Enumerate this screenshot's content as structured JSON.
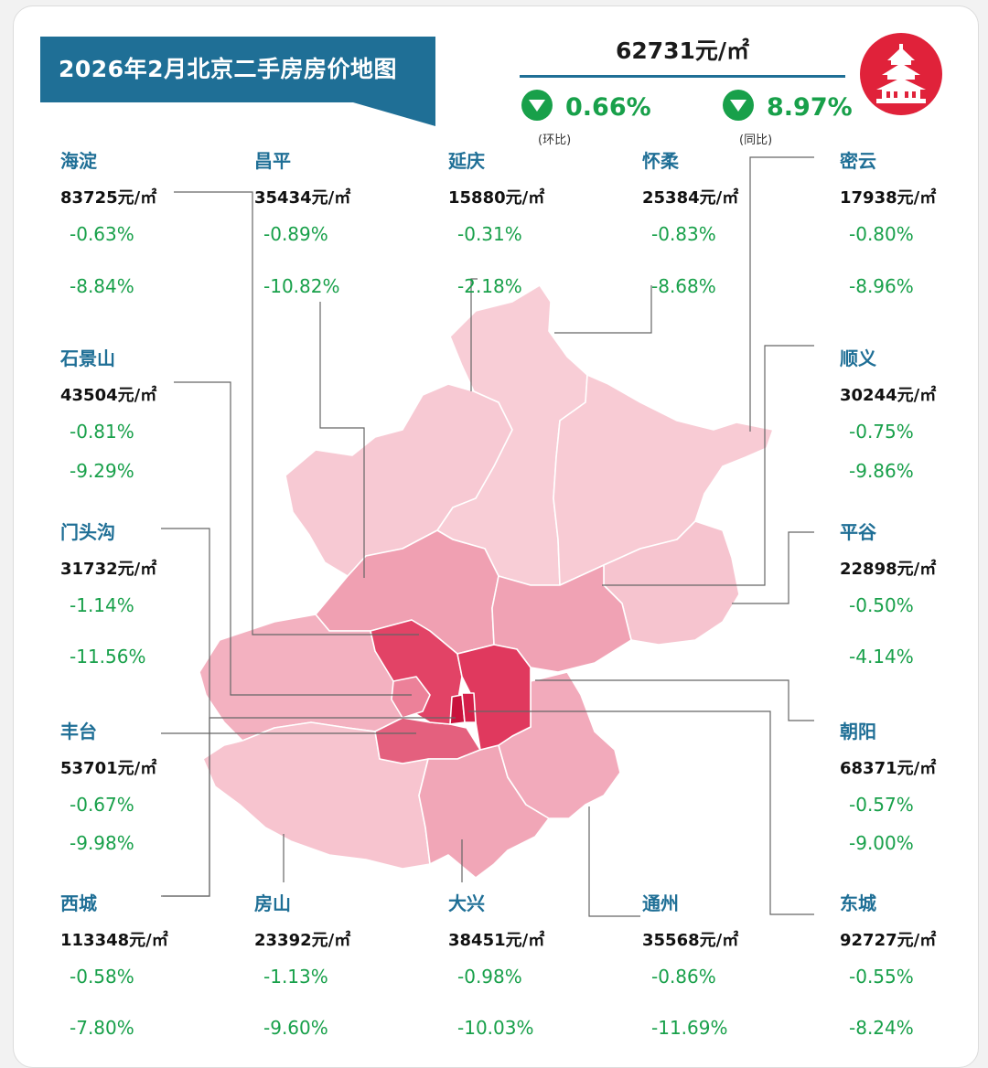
{
  "title": "2026年2月北京二手房房价地图",
  "summary": {
    "price": "62731元/㎡",
    "mom_change": "0.66%",
    "mom_label": "(环比)",
    "yoy_change": "8.97%",
    "yoy_label": "(同比)"
  },
  "colors": {
    "accent": "#1f6f96",
    "down": "#18a04a",
    "logo": "#e0223a"
  },
  "logo_icon": "temple-of-heaven-icon",
  "districts": [
    {
      "name": "海淀",
      "price": "83725元/㎡",
      "mom": "-0.63%",
      "yoy": "-8.84%"
    },
    {
      "name": "昌平",
      "price": "35434元/㎡",
      "mom": "-0.89%",
      "yoy": "-10.82%"
    },
    {
      "name": "延庆",
      "price": "15880元/㎡",
      "mom": "-0.31%",
      "yoy": "-2.18%"
    },
    {
      "name": "怀柔",
      "price": "25384元/㎡",
      "mom": "-0.83%",
      "yoy": "-8.68%"
    },
    {
      "name": "密云",
      "price": "17938元/㎡",
      "mom": "-0.80%",
      "yoy": "-8.96%"
    },
    {
      "name": "石景山",
      "price": "43504元/㎡",
      "mom": "-0.81%",
      "yoy": "-9.29%"
    },
    {
      "name": "顺义",
      "price": "30244元/㎡",
      "mom": "-0.75%",
      "yoy": "-9.86%"
    },
    {
      "name": "门头沟",
      "price": "31732元/㎡",
      "mom": "-1.14%",
      "yoy": "-11.56%"
    },
    {
      "name": "平谷",
      "price": "22898元/㎡",
      "mom": "-0.50%",
      "yoy": "-4.14%"
    },
    {
      "name": "丰台",
      "price": "53701元/㎡",
      "mom": "-0.67%",
      "yoy": "-9.98%"
    },
    {
      "name": "朝阳",
      "price": "68371元/㎡",
      "mom": "-0.57%",
      "yoy": "-9.00%"
    },
    {
      "name": "西城",
      "price": "113348元/㎡",
      "mom": "-0.58%",
      "yoy": "-7.80%"
    },
    {
      "name": "房山",
      "price": "23392元/㎡",
      "mom": "-1.13%",
      "yoy": "-9.60%"
    },
    {
      "name": "大兴",
      "price": "38451元/㎡",
      "mom": "-0.98%",
      "yoy": "-10.03%"
    },
    {
      "name": "通州",
      "price": "35568元/㎡",
      "mom": "-0.86%",
      "yoy": "-11.69%"
    },
    {
      "name": "东城",
      "price": "92727元/㎡",
      "mom": "-0.55%",
      "yoy": "-8.24%"
    }
  ]
}
